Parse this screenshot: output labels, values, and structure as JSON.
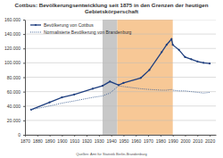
{
  "chart_data": {
    "type": "line",
    "title": "Cottbus: Bevölkerungsentwicklung seit 1875 in den Grenzen der heutigen Gebietskörperschaft",
    "x": [
      1875,
      1890,
      1900,
      1910,
      1925,
      1933,
      1939,
      1946,
      1950,
      1964,
      1971,
      1981,
      1985,
      1989,
      1990,
      1995,
      2000,
      2005,
      2010,
      2015,
      2020
    ],
    "series": [
      {
        "name": "Bevölkerung von Cottbus",
        "color": "#1f3f7f",
        "marker": "circle",
        "line_style": "solid",
        "values": [
          35000,
          45000,
          52000,
          56000,
          64000,
          68000,
          74000,
          69000,
          72000,
          79000,
          90000,
          115000,
          125000,
          133000,
          125000,
          118000,
          108000,
          105000,
          102000,
          100000,
          99000
        ]
      },
      {
        "name": "Normalisierte Bevölkerung von Brandenburg",
        "color": "#4a6a9a",
        "line_style": "dotted",
        "values": [
          35000,
          40000,
          44000,
          47000,
          52000,
          54000,
          58000,
          68000,
          67000,
          64000,
          63000,
          62000,
          62000,
          63000,
          62000,
          61000,
          61000,
          60000,
          59000,
          58000,
          59000
        ]
      }
    ],
    "bands": [
      {
        "from": 1933,
        "to": 1945,
        "color": "#c8c8c8"
      },
      {
        "from": 1945,
        "to": 1990,
        "color": "#f7c896"
      }
    ],
    "xlim": [
      1870,
      2025
    ],
    "xticks": [
      1870,
      1880,
      1890,
      1900,
      1910,
      1920,
      1930,
      1940,
      1950,
      1960,
      1970,
      1980,
      1990,
      2000,
      2010,
      2020
    ],
    "ylim": [
      0,
      160000
    ],
    "yticks": [
      0,
      {
        "value": 20000,
        "label": "20.000"
      },
      {
        "value": 40000,
        "label": "40.000"
      },
      {
        "value": 60000,
        "label": "60.000"
      },
      {
        "value": 80000,
        "label": "80.000"
      },
      {
        "value": 100000,
        "label": "100.000"
      },
      {
        "value": 120000,
        "label": "120.000"
      },
      {
        "value": 140000,
        "label": "140.000"
      },
      {
        "value": 160000,
        "label": "160.000"
      }
    ],
    "grid": true,
    "legend": "upper left",
    "annotations": [
      "Quellen: Amt für Statistik Berlin-Brandenburg"
    ]
  }
}
